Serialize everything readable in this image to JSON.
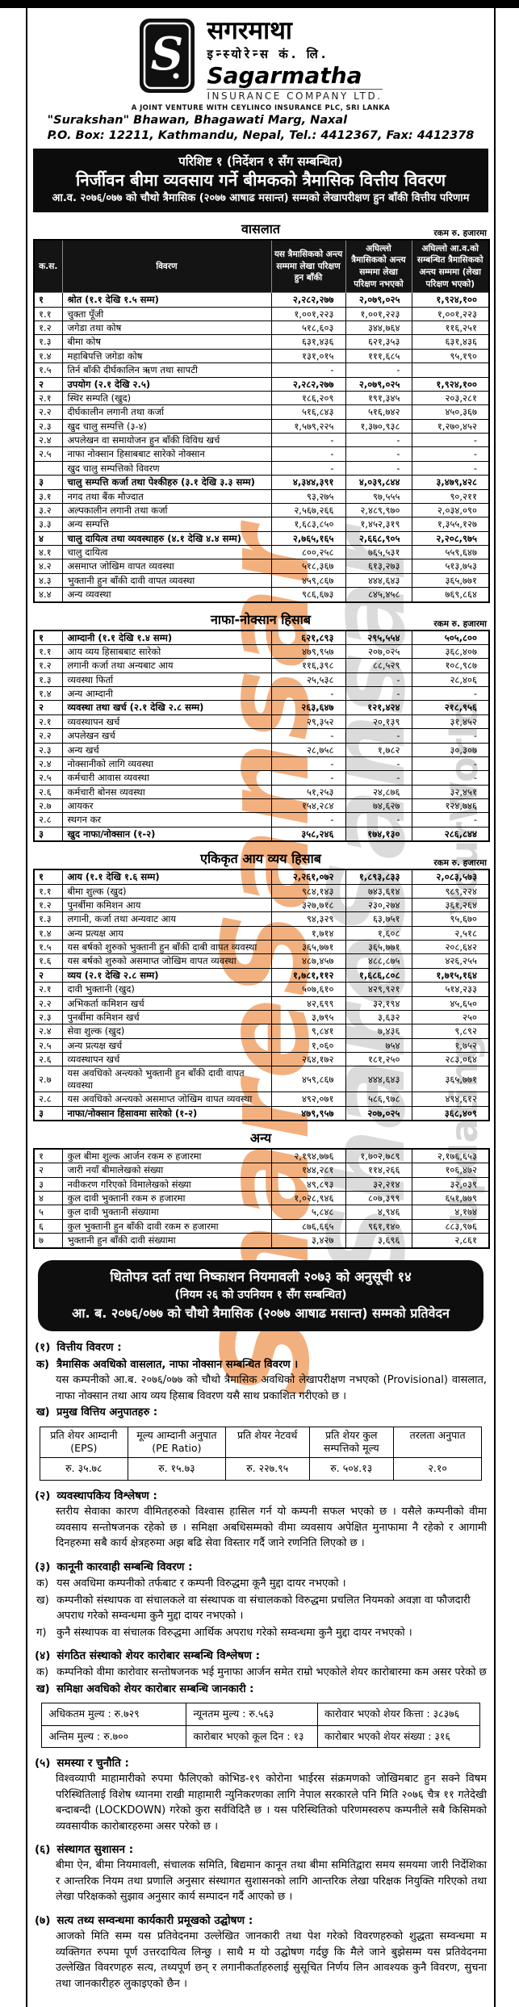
{
  "header": {
    "logo_devanagari_line1": "सगरमाथा",
    "logo_devanagari_line2": "इन्स्योरेन्स कं. लि.",
    "logo_english_name": "Sagarmatha",
    "logo_english_sub": "INSURANCE COMPANY LTD.",
    "joint_venture": "A JOINT VENTURE WITH CEYLINCO INSURANCE PLC, SRI LANKA",
    "address_line1": "\"Surakshan\" Bhawan, Bhagawati Marg, Naxal",
    "address_line2": "P.O. Box: 12211, Kathmandu, Nepal, Tel.: 4412367, Fax: 4412378"
  },
  "title_banner": {
    "line1": "परिशिष्ट १ (निर्देशन १ सँग सम्बन्धित)",
    "line2": "निर्जीवन बीमा व्यवसाय गर्ने बीमकको त्रैमासिक वित्तीय विवरण",
    "line3": "आ.व. २०७६/०७७ को चौथो त्रैमासिक (२०७७ आषाढ मसान्त) सम्मको लेखापरीक्षण हुन बाँकी वित्तीय परिणाम"
  },
  "amount_note": "रकम रु. हजारमा",
  "fin_table_headers": [
    "क.स.",
    "विवरण",
    "यस त्रैमासिकको अन्त्य सम्ममा लेखा परिक्षण हुन बाँकी",
    "अघिल्लो त्रैमासिकको अन्त्य सम्ममा लेखा परिक्षण नभएको",
    "अघिल्लो आ.व.को सम्बन्धित त्रैमासिकको अन्त्य सम्ममा (लेखा परिक्षण भएको)"
  ],
  "balance_sheet": {
    "title": "वासलात",
    "rows": [
      {
        "sn": "१",
        "desc": "श्रोत (१.१ देखि १.५ सम्म)",
        "v": [
          "२,२८२,२७७",
          "२,०७९,०२५",
          "१,९२४,१००"
        ],
        "b": true
      },
      {
        "sn": "१.१",
        "desc": "चुक्ता पूँजी",
        "v": [
          "१,००१,२२३",
          "१,००१,२२३",
          "१,००१,२२३"
        ]
      },
      {
        "sn": "१.२",
        "desc": "जगेडा तथा कोष",
        "v": [
          "५१८,६०३",
          "३४४,७६४",
          "११६,२५१"
        ]
      },
      {
        "sn": "१.३",
        "desc": "बीमा कोष",
        "v": [
          "६३१,४३६",
          "६२१,३५३",
          "६३१,४३६"
        ]
      },
      {
        "sn": "१.४",
        "desc": "महाबिपत्ति जगेडा कोष",
        "v": [
          "१३१,०१५",
          "१११,६८५",
          "९५,१९०"
        ]
      },
      {
        "sn": "१.५",
        "desc": "तिर्न बाँकी दीर्घकालिन ऋण तथा सापटी",
        "v": [
          "-",
          "-",
          ""
        ]
      },
      {
        "sn": "२",
        "desc": "उपयोग (२.१ देखि २.५)",
        "v": [
          "२,२८२,२७७",
          "२,०७९,०२५",
          "१,९२४,१००"
        ],
        "b": true
      },
      {
        "sn": "२.१",
        "desc": "स्थिर सम्पति (खुद)",
        "v": [
          "१८६,२०९",
          "१९१,३४५",
          "२०३,२८१"
        ]
      },
      {
        "sn": "२.२",
        "desc": "दीर्घकालीन लगानी तथा कर्जा",
        "v": [
          "५१६,८४३",
          "५१६,७४२",
          "४५०,३६७"
        ]
      },
      {
        "sn": "२.३",
        "desc": "खुद चालु सम्पत्ति (३-४)",
        "v": [
          "१,५७९,२२५",
          "१,३७०,९३८",
          "१,२७०,४५२"
        ]
      },
      {
        "sn": "२.४",
        "desc": "अपलेखन वा समायोजन हुन बाँकी विविध खर्च",
        "v": [
          "-",
          "-",
          "-"
        ]
      },
      {
        "sn": "२.५",
        "desc": "नाफा नोक्सान हिसाबबाट सारेको नोक्सान",
        "v": [
          "-",
          "-",
          "-"
        ]
      },
      {
        "sn": "",
        "desc": "खुद चालु सम्पत्तिको विवरण",
        "v": [
          "-",
          "-",
          "-"
        ]
      },
      {
        "sn": "३",
        "desc": "चालु सम्पत्ति कर्जा तथा पेश्कीहरु (३.१ देखि ३.३ सम्म)",
        "v": [
          "४,३४४,३९१",
          "४,०३९,८४४",
          "३,४७९,४२८"
        ],
        "b": true
      },
      {
        "sn": "३.१",
        "desc": "नगद तथा बैंक मौज्दात",
        "v": [
          "९३,२७५",
          "९७,५५५",
          "९०,२११"
        ]
      },
      {
        "sn": "३.२",
        "desc": "अल्पकालीन लगानी तथा कर्जा",
        "v": [
          "२,५६७,२६६",
          "२,४८९,९७०",
          "२,०३४,०९०"
        ]
      },
      {
        "sn": "३.३",
        "desc": "अन्य सम्पत्ति",
        "v": [
          "१,६८३,८५०",
          "१,४५२,३१९",
          "१,३५५,१२७"
        ]
      },
      {
        "sn": "४",
        "desc": "चालु दायित्व तथा व्यवस्थाहरु (४.१ देखि ४.४ सम्म)",
        "v": [
          "२,७६५,१६५",
          "२,६६८,९०५",
          "२,२०८,९७५"
        ],
        "b": true
      },
      {
        "sn": "४.१",
        "desc": "चालु दायित्व",
        "v": [
          "८००,२५८",
          "७६५,५३१",
          "५५९,६४७"
        ]
      },
      {
        "sn": "४.२",
        "desc": "असमाप्त जोखिम वापत व्यवस्था",
        "v": [
          "५१८,३६७",
          "६१३,२७३",
          "५१३,७५३"
        ]
      },
      {
        "sn": "४.३",
        "desc": "भुक्तानी हुन बाँकी दावी वापत व्यवस्था",
        "v": [
          "४५९,८६७",
          "४४४,६४३",
          "३६५,७७१"
        ]
      },
      {
        "sn": "४.४",
        "desc": "अन्य व्यवस्था",
        "v": [
          "९८६,६७३",
          "८४५,४५८",
          "७६९,८६४"
        ]
      }
    ]
  },
  "profit_loss": {
    "title": "नाफा-नोक्सान हिसाब",
    "rows": [
      {
        "sn": "१",
        "desc": "आम्दानी (१.१ देखि १.४ सम्म)",
        "v": [
          "६२१,८९३",
          "२९५,५५४",
          "५०५,८००"
        ],
        "b": true
      },
      {
        "sn": "१.१",
        "desc": "आय व्यय हिसाबबाट सारेको",
        "v": [
          "४७९,९५७",
          "२०७,०२५",
          "३६८,४०७"
        ]
      },
      {
        "sn": "१.२",
        "desc": "लगानी कर्जा तथा अन्यबाट आय",
        "v": [
          "११६,३९८",
          "८८,५२९",
          "१०८,९८७"
        ]
      },
      {
        "sn": "१.३",
        "desc": "व्यवस्था फिर्ता",
        "v": [
          "२५,५३८",
          "-",
          "२८,४०६"
        ]
      },
      {
        "sn": "१.४",
        "desc": "अन्य आम्दानी",
        "v": [
          "-",
          "-",
          "-"
        ]
      },
      {
        "sn": "२",
        "desc": "व्यवस्था तथा खर्च (२.१ देखि २.८ सम्म)",
        "v": [
          "२६३,६४७",
          "१२१,४२४",
          "२१८,९५६"
        ],
        "b": true
      },
      {
        "sn": "२.१",
        "desc": "व्यवस्थापन खर्च",
        "v": [
          "२९,३५२",
          "२०,१३९",
          "३१,४५२"
        ]
      },
      {
        "sn": "२.२",
        "desc": "अपलेखन खर्च",
        "v": [
          "-",
          "-",
          "-"
        ]
      },
      {
        "sn": "२.३",
        "desc": "अन्य खर्च",
        "v": [
          "२८,७५८",
          "१,७८२",
          "३०,३०७"
        ]
      },
      {
        "sn": "२.४",
        "desc": "नोक्सानीको लागि व्यवस्था",
        "v": [
          "-",
          "-",
          "-"
        ]
      },
      {
        "sn": "२.५",
        "desc": "कर्मचारी आवास व्यवस्था",
        "v": [
          "-",
          "-",
          "-"
        ]
      },
      {
        "sn": "२.६",
        "desc": "कर्मचारी बोनस व्यवस्था",
        "v": [
          "५१,२५३",
          "२४,८७६",
          "३२,४५१"
        ]
      },
      {
        "sn": "२.७",
        "desc": "आयकर",
        "v": [
          "१५४,२८४",
          "७४,६२७",
          "१२४,७४६"
        ]
      },
      {
        "sn": "२.८",
        "desc": "स्थगन कर",
        "v": [
          "-",
          "-",
          "-"
        ]
      },
      {
        "sn": "३",
        "desc": "खुद नाफा/नोक्सान (१-२)",
        "v": [
          "३५८,२४६",
          "१७४,१३०",
          "२८६,८४४"
        ],
        "b": true
      }
    ]
  },
  "income_expenditure": {
    "title": "एकिकृत आय व्यय हिसाब",
    "rows": [
      {
        "sn": "१",
        "desc": "आय (१.१ देखि १.६ सम्म)",
        "v": [
          "२,२६१,०७२",
          "१,८९३,८३३",
          "२,०८३,५७३"
        ],
        "b": true
      },
      {
        "sn": "१.१",
        "desc": "बीमा शुल्क (खुद)",
        "v": [
          "९८४,१४३",
          "७४३,६१४",
          "९८९,२२४"
        ]
      },
      {
        "sn": "१.२",
        "desc": "पुनर्बीमा कमिशन आय",
        "v": [
          "३२७,७१८",
          "२३०,२७४",
          "३६१,२६४"
        ]
      },
      {
        "sn": "१.३",
        "desc": "लगानी, कर्जा तथा अन्यवाट आय",
        "v": [
          "९४,३२९",
          "६३,७५१",
          "९५,६७०"
        ]
      },
      {
        "sn": "१.४",
        "desc": "अन्य प्रत्यक्ष आय",
        "v": [
          "१,७१४",
          "१,६०८",
          "२,५१८"
        ]
      },
      {
        "sn": "१.५",
        "desc": "यस बर्षको शुरुको भुक्तानी हुन बाँकी दाबी वापत व्यवस्था",
        "v": [
          "३६५,७७१",
          "३६५,७७१",
          "२०८,६४२"
        ]
      },
      {
        "sn": "१.६",
        "desc": "यस बर्षको शुरुको असमाप्त जोखिम वापत व्यवस्था",
        "v": [
          "४८७,४५७",
          "४८८,८७५",
          "४२६,२५५"
        ]
      },
      {
        "sn": "२",
        "desc": "व्यय (२.१ देखि २.८ सम्म)",
        "v": [
          "१,७८१,११२",
          "१,६८६,८०८",
          "१,७१५,१६४"
        ],
        "b": true
      },
      {
        "sn": "२.१",
        "desc": "दावी भुक्तानी (खुद)",
        "v": [
          "५०७,६१०",
          "४२९,९२१",
          "५१४,२३३"
        ]
      },
      {
        "sn": "२.२",
        "desc": "अभिकर्ता कमिशन खर्च",
        "v": [
          "४२,६९९",
          "३२,१९४",
          "४५,६५०"
        ]
      },
      {
        "sn": "२.३",
        "desc": "पुनर्बीमा कमिशन खर्च",
        "v": [
          "३,७९५",
          "३,६३२",
          "२५०"
        ]
      },
      {
        "sn": "२.४",
        "desc": "सेवा शुल्क (खुद)",
        "v": [
          "९,८४१",
          "७,४३६",
          "९,८९२"
        ]
      },
      {
        "sn": "२.५",
        "desc": "अन्य प्रत्यक्ष खर्च",
        "v": [
          "१,०६०",
          "७५४",
          "१,७५२"
        ]
      },
      {
        "sn": "२.६",
        "desc": "व्यवस्थापन खर्च",
        "v": [
          "२६४,१७२",
          "१८१,२५०",
          "२८३,०६४"
        ]
      },
      {
        "sn": "२.७",
        "desc": "यस अवधिको अन्त्यको भुक्तानी हुन बाँकी दावी वापत व्यवस्था",
        "v": [
          "४५९,८६७",
          "४४४,६४३",
          "३६५,७७१"
        ]
      },
      {
        "sn": "२.८",
        "desc": "यस अवधिको अन्त्यको असमाप्त जोखिम वापत व्यवस्था",
        "v": [
          "४९२,०७१",
          "५८६,९७८",
          "४९४,६१२"
        ]
      },
      {
        "sn": "३",
        "desc": "नाफा/नोक्सान हिसावमा सारेको (१-२)",
        "v": [
          "४७९,९५७",
          "२०७,०२५",
          "३६८,४०९"
        ],
        "b": true
      }
    ]
  },
  "other": {
    "title": "अन्य",
    "rows": [
      {
        "sn": "१",
        "desc": "कुल बीमा शुल्क आर्जन रकम रु हजारमा",
        "v": [
          "२,१९४,७७६",
          "१,७०२,७८९",
          "२,१७६,६५३"
        ]
      },
      {
        "sn": "२",
        "desc": "जारी नयाँ बीमालेखको संख्या",
        "v": [
          "१४४,२८१",
          "११४,२६६",
          "१०६,४७२"
        ]
      },
      {
        "sn": "३",
        "desc": "नवीकरण गरिएको विमालेखको संख्या",
        "v": [
          "४९,८९३",
          "३२,२१४",
          "३२,०३९"
        ]
      },
      {
        "sn": "४",
        "desc": "कुल दावी भुक्तानी रकम रु हजारमा",
        "v": [
          "१,०२८,९४६",
          "८०७,३९९",
          "६५१,७७९"
        ]
      },
      {
        "sn": "५",
        "desc": "कुल दावी भुक्तानी संख्यामा",
        "v": [
          "५,८४८",
          "४,९४६",
          "४,१७४"
        ]
      },
      {
        "sn": "६",
        "desc": "कुल भुक्तानी हुन बाँकी दावी रकम रु हजारमा",
        "v": [
          "८७६,६६५",
          "९६१,१४०",
          "८८३,९७६"
        ]
      },
      {
        "sn": "७",
        "desc": "भुक्तानी हुन बाँकी दावी संख्यामा",
        "v": [
          "३,४२७",
          "३,६९६",
          "२,८६१"
        ]
      }
    ]
  },
  "regulation_banner": {
    "line1": "धितोपत्र दर्ता तथा निष्काशन नियमावली २०७३ को अनुसूची १४",
    "line2": "(नियम २६ को उपनियम १ सँग सम्बन्धित)",
    "line3": "आ. ब. २०७६/०७७ को चौथो त्रैमासिक (२०७७ आषाढ मसान्त) सम्मको प्रतिवेदन"
  },
  "sections": [
    {
      "num": "(१)",
      "title": "वित्तीय विवरण :",
      "a_label": "क)",
      "a_text": "त्रैमासिक अवधिको वासलात, नाफा नोक्सान सम्बन्धित विवरण ।",
      "a_body": "यस कम्पनीको आ.ब. २०७६/०७७ को चौथो त्रैमासिक अवधिको लेखापरीक्षण नभएको (Provisional) वासलात, नाफा नोक्सान तथा आय व्यय हिसाब विवरण यसै साथ प्रकाशित गरीएको छ ।",
      "b_label": "ख)",
      "b_text": "प्रमुख वित्तिय अनुपातहरु :"
    },
    {
      "num": "(२)",
      "title": "व्यवस्थापकिय विश्लेषण :",
      "body": "स्तरीय सेवाका कारण वीमितहरुको विश्वास हासिल गर्न यो कम्पनी सफल भएको छ । यसैले कम्पनीको वीमा व्यवसाय सन्तोषजनक  रहेको छ । समिक्षा अबधिसम्मको वीमा व्यवसाय अपेक्षित मुनाफामा नै रहेको र आगामी दिनहरुमा सबै कार्य क्षेत्रहरुमा अझ बढि सेवा विस्तार गर्दै जाने रणनिति लिएको छ ।"
    },
    {
      "num": "(३)",
      "title": "कानूनी कारवाही सम्बन्धि विवरण :",
      "a_label": "क)",
      "a_text": "यस अवधिमा कम्पनीको तर्फबाट र कम्पनी विरुद्धमा कूनै मुद्दा दायर नभएको ।",
      "b_label": "ख)",
      "b_text": "कम्पनीको संस्थापक वा संचालकले वा संस्थापक वा संचालकको  विरुद्धमा प्रचलित नियमको अवज्ञा वा फौजदारी अपराध गरेको सम्वन्धमा कुनै मुद्दा दायर नभएको ।",
      "c_label": "ग)",
      "c_text": "कुनै संस्थापक वा संचालक विरुद्धमा आर्थिक अपराध गरेको सम्वन्धमा कुनै मुद्दा दायर नभएको ।"
    },
    {
      "num": "(४)",
      "title": "संगठित संस्थाको शेयर कारोबार सम्बन्धि विश्लेषण :",
      "a_label": "क)",
      "a_text": "कम्पनिको वीमा कारोवार सन्तोषजनक भई मुनाफा आर्जन समेत राम्रो भएकोले शेयर कारोबारमा कम असर परेको छ",
      "b_label": "ख)",
      "b_text": "समिक्षा अवधिको शेयर कारोबार सम्बन्धि जानकारी :"
    },
    {
      "num": "(५)",
      "title": "समस्या र चुनौति :",
      "body": "विश्वव्यापी माहामारीको रुपमा फैलिएको कोभिड-१९ कोरोना भाईरस संक्रमणको जोखिमबाट हुन सक्ने विषम परिस्थितिलाई विशेष ध्यानमा राखी माहामारी न्युनिकरणका लागि नेपाल सरकारले पनि मिति २०७६ चैत्र ११ गतेदेखी बन्दाबन्दी (LOCKDOWN) गरेको कुरा सर्वविदितै छ । यस परिस्थितिको परिणमस्वरुप कम्पनीले सबै किसिमको व्यवसायीक कारोबारहरुमा असर परेको छ ।"
    },
    {
      "num": "(६)",
      "title": "संस्थागत सुशासन :",
      "body": "बीमा ऐन, बीमा नियमावली, संचालक समिति, बिद्यमान कानून  तथा बीमा समितिद्वारा समय समयमा जारी निर्देशिका र आन्तरिक नियम तथा प्रणालि अनुसार संस्थागत सुशासनको लागि आन्तरिक लेखा परिक्षक नियुक्ति गरिएको तथा लेखा परिक्षकको सुझाव अनुसार कार्य सम्पादन गर्दै आएको छ ।"
    },
    {
      "num": "(७)",
      "title": "सत्य तथ्य सम्वन्धमा कार्यकारी प्रमूखको उद्घोषण :",
      "body": "आजको मिति सम्म यस प्रतिवेदनमा उल्लेखित जानकारी तथा पेश गरेको विवरणहरुको शुद्धता सम्वन्धमा म व्यक्तिगत रुपमा पूर्ण उत्तरदायित्व लिन्छु । साथै म यो उद्घोषण गर्दछु कि मैले जाने बुझेसम्म यस प्रतिवेदनमा उल्लेखित विवरणहरु सत्य, तथ्यपूर्ण छन् र लगानीकर्ताहरुलाई सुसूचित निर्णय लिन आवश्यक कुनै विवरण, सुचना तथा जानकारीहरु लुकाइएको छैन ।"
    }
  ],
  "ratios": {
    "headers": [
      {
        "top": "प्रति शेयर आम्दानी",
        "bottom": "(EPS)"
      },
      {
        "top": "मूल्य आम्दानी अनुपात",
        "bottom": "(PE Ratio)"
      },
      {
        "top": "प्रति शेयर नेटवर्थ",
        "bottom": ""
      },
      {
        "top": "प्रति शेयर कुल",
        "bottom": "सम्पत्तिको मूल्य"
      },
      {
        "top": "तरलता अनुपात",
        "bottom": ""
      }
    ],
    "values": [
      "रु. ३५.७८",
      "रु. १५.७३",
      "रु. २२७.९५",
      "रु. ५०४.१३",
      "२.१०"
    ]
  },
  "share": {
    "rows": [
      [
        "अधिकतम मुल्य  : रु.७२९",
        "न्यूनतम मुल्य   : रु.५६३",
        "कारोवार भएको शेयर कित्ता : ३८३७६"
      ],
      [
        "अन्तिम मुल्य    : रु.७००",
        "कारोबार भएको कूल दिन : १३",
        "कारोबार भएको शेयर संख्या : ३१६"
      ]
    ]
  },
  "watermark": {
    "primary_text": "ShareSansar",
    "primary_color": "#ef8f4a",
    "secondary_text_1": "YourWorld",
    "secondary_text_2": "Updating",
    "secondary_color": "#8a8a8a"
  }
}
